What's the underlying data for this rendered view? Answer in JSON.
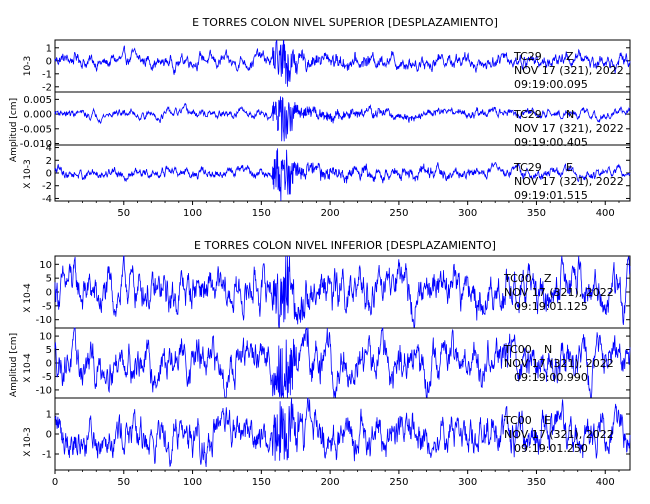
{
  "chart_data": [
    {
      "type": "line",
      "title": "E TORRES COLON NIVEL SUPERIOR [DESPLAZAMIENTO]",
      "ylabel": "Amplitud [cm]",
      "xlim": [
        0,
        418
      ],
      "xticks": [
        50,
        100,
        150,
        200,
        250,
        300,
        350,
        400
      ],
      "grid": false,
      "line_color": "#0000ff",
      "traces": [
        {
          "station": "TC29",
          "component": "Z",
          "date": "NOV 17 (321), 2022",
          "time": "09:19:00.095",
          "scale": "10-3",
          "ylim": [
            -2.4,
            1.6
          ],
          "yticks": [
            "1",
            "0",
            "-1",
            "-2"
          ],
          "background_amp": 0.45,
          "event_amp": 1.6
        },
        {
          "station": "TC29",
          "component": "N",
          "date": "NOV 17 (321), 2022",
          "time": "09:19:00.405",
          "scale": "",
          "ylim": [
            -0.0105,
            0.0075
          ],
          "yticks": [
            "0.005",
            "0.000",
            "-0.005",
            "-0.010"
          ],
          "background_amp": 0.0012,
          "event_amp": 0.0075
        },
        {
          "station": "TC29",
          "component": "E",
          "date": "NOV 17 (321), 2022",
          "time": "09:19:01.515",
          "scale": "X 10-3",
          "ylim": [
            -4.4,
            4.4
          ],
          "yticks": [
            "4",
            "2",
            "0",
            "-2",
            "-4"
          ],
          "background_amp": 0.7,
          "event_amp": 4.2
        }
      ]
    },
    {
      "type": "line",
      "title": "E TORRES COLON NIVEL INFERIOR [DESPLAZAMIENTO]",
      "ylabel": "Amplitud [cm]",
      "xlim": [
        0,
        418
      ],
      "xticks": [
        0,
        50,
        100,
        150,
        200,
        250,
        300,
        350,
        400
      ],
      "grid": false,
      "line_color": "#0000ff",
      "traces": [
        {
          "station": "TC00",
          "component": "Z",
          "date": "NOV 17 (321), 2022",
          "time": "09:19:01.125",
          "scale": "X 10-4",
          "ylim": [
            -13,
            13
          ],
          "yticks": [
            "10",
            "5",
            "0",
            "-5",
            "-10"
          ],
          "background_amp": 6,
          "event_amp": 12
        },
        {
          "station": "TC00",
          "component": "N",
          "date": "NOV 17 (321), 2022",
          "time": "09:19:00.990",
          "scale": "X 10-4",
          "ylim": [
            -13,
            13
          ],
          "yticks": [
            "10",
            "5",
            "0",
            "-5",
            "-10"
          ],
          "background_amp": 6,
          "event_amp": 12
        },
        {
          "station": "TC00",
          "component": "E",
          "date": "NOV 17 (321), 2022",
          "time": "09:19:01.250",
          "scale": "X 10-3",
          "ylim": [
            -1.8,
            1.8
          ],
          "yticks": [
            "1",
            "0",
            "-1"
          ],
          "background_amp": 0.8,
          "event_amp": 1.5
        }
      ]
    }
  ]
}
